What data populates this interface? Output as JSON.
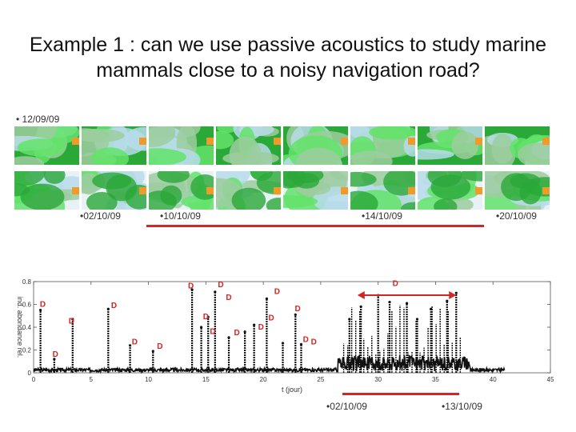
{
  "slide": {
    "title": "Example 1 : can we use passive acoustics to study marine mammals close to a noisy navigation road?"
  },
  "maps": {
    "top_date": "• 12/09/09",
    "bottom_dates": [
      "•02/10/09",
      "•10/10/09",
      "•14/10/09",
      "•20/10/09"
    ],
    "colors": {
      "land": "#2aa838",
      "sea": "#b7dcea",
      "bright": "#63e36a",
      "orange": "#f09a2a"
    }
  },
  "plot": {
    "ylabel": "ind. abondance rel.",
    "xlabel": "t (jour)",
    "yticks": [
      "0.8",
      "0.6",
      "0.4",
      "0.2",
      "0"
    ],
    "xticks": [
      "0",
      "5",
      "10",
      "15",
      "20",
      "25",
      "30",
      "35",
      "40",
      "45"
    ],
    "bottom_dates": [
      "•02/10/09",
      "•13/10/09"
    ],
    "d_label": "D",
    "colors": {
      "arrow": "#d42424",
      "d_marker": "#d42424",
      "signal": "#111111"
    }
  },
  "chart_data": {
    "type": "scatter",
    "title": "",
    "xlabel": "t (jour)",
    "ylabel": "ind. abondance rel.",
    "xlim": [
      0,
      45
    ],
    "ylim": [
      0,
      0.8
    ],
    "x_ticks": [
      0,
      5,
      10,
      15,
      20,
      25,
      30,
      35,
      40,
      45
    ],
    "y_ticks": [
      0,
      0.2,
      0.4,
      0.6,
      0.8
    ],
    "peaks": [
      {
        "x": 0.6,
        "y": 0.55
      },
      {
        "x": 1.8,
        "y": 0.12
      },
      {
        "x": 3.4,
        "y": 0.47
      },
      {
        "x": 6.5,
        "y": 0.56
      },
      {
        "x": 8.4,
        "y": 0.24
      },
      {
        "x": 10.4,
        "y": 0.19
      },
      {
        "x": 13.8,
        "y": 0.73
      },
      {
        "x": 14.6,
        "y": 0.4
      },
      {
        "x": 15.2,
        "y": 0.49
      },
      {
        "x": 15.8,
        "y": 0.71
      },
      {
        "x": 17.0,
        "y": 0.31
      },
      {
        "x": 18.4,
        "y": 0.36
      },
      {
        "x": 19.2,
        "y": 0.42
      },
      {
        "x": 20.3,
        "y": 0.65
      },
      {
        "x": 21.7,
        "y": 0.26
      },
      {
        "x": 22.8,
        "y": 0.51
      },
      {
        "x": 23.3,
        "y": 0.25
      },
      {
        "x": 27.5,
        "y": 0.47
      },
      {
        "x": 28.5,
        "y": 0.58
      },
      {
        "x": 30.0,
        "y": 0.68
      },
      {
        "x": 31.0,
        "y": 0.62
      },
      {
        "x": 32.5,
        "y": 0.61
      },
      {
        "x": 33.4,
        "y": 0.47
      },
      {
        "x": 34.6,
        "y": 0.56
      },
      {
        "x": 36.0,
        "y": 0.63
      },
      {
        "x": 36.8,
        "y": 0.7
      }
    ],
    "d_markers": [
      {
        "x": 0.8,
        "y": 0.58
      },
      {
        "x": 1.9,
        "y": 0.14
      },
      {
        "x": 3.3,
        "y": 0.43
      },
      {
        "x": 7.0,
        "y": 0.57
      },
      {
        "x": 8.8,
        "y": 0.25
      },
      {
        "x": 11.0,
        "y": 0.21
      },
      {
        "x": 13.7,
        "y": 0.74
      },
      {
        "x": 15.0,
        "y": 0.47
      },
      {
        "x": 15.6,
        "y": 0.34
      },
      {
        "x": 16.3,
        "y": 0.75
      },
      {
        "x": 17.0,
        "y": 0.64
      },
      {
        "x": 17.7,
        "y": 0.33
      },
      {
        "x": 19.8,
        "y": 0.38
      },
      {
        "x": 20.7,
        "y": 0.46
      },
      {
        "x": 21.2,
        "y": 0.69
      },
      {
        "x": 23.0,
        "y": 0.54
      },
      {
        "x": 23.7,
        "y": 0.27
      },
      {
        "x": 24.4,
        "y": 0.25
      },
      {
        "x": 31.5,
        "y": 0.76
      }
    ],
    "arrow_range": [
      28.2,
      36.8
    ],
    "grid": false
  }
}
